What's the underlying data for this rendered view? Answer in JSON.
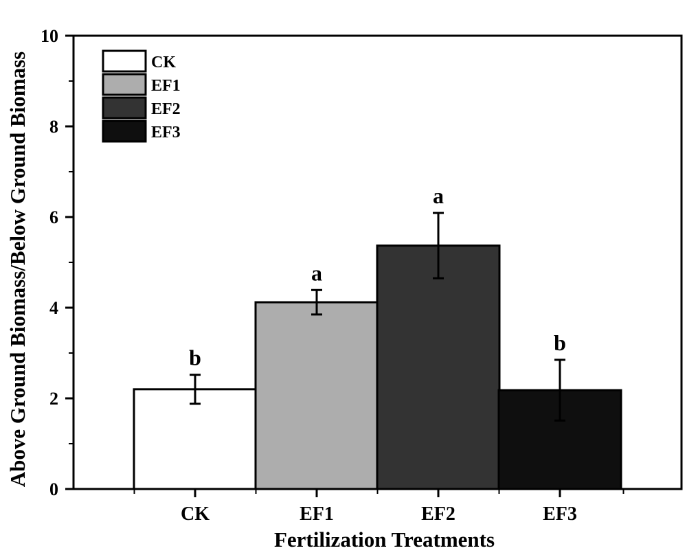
{
  "chart_data": {
    "type": "bar",
    "title": "",
    "xlabel": "Fertilization Treatments",
    "ylabel": "Above Ground Biomass/Below Ground Biomass",
    "categories": [
      "CK",
      "EF1",
      "EF2",
      "EF3"
    ],
    "values": [
      2.2,
      4.12,
      5.37,
      2.18
    ],
    "errors": [
      0.32,
      0.27,
      0.72,
      0.67
    ],
    "significance": [
      "b",
      "a",
      "a",
      "b"
    ],
    "colors": [
      "#ffffff",
      "#adadad",
      "#333333",
      "#0f0f0f"
    ],
    "ylim": [
      0,
      10
    ],
    "yticks": [
      0,
      2,
      4,
      6,
      8,
      10
    ],
    "legend": {
      "position": "top-left",
      "entries": [
        "CK",
        "EF1",
        "EF2",
        "EF3"
      ]
    },
    "grid": false
  }
}
